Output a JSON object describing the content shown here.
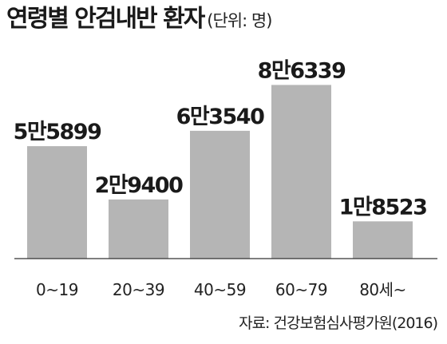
{
  "header": {
    "title": "연령별 안검내반 환자",
    "unit": "(단위: 명)"
  },
  "chart_data": {
    "type": "bar",
    "categories": [
      "0~19",
      "20~39",
      "40~59",
      "60~79",
      "80세~"
    ],
    "values": [
      55899,
      29400,
      63540,
      86339,
      18523
    ],
    "value_labels": [
      "5만5899",
      "2만9400",
      "6만3540",
      "8만6339",
      "1만8523"
    ],
    "title": "연령별 안검내반 환자",
    "unit": "(단위: 명)",
    "xlabel": "",
    "ylabel": "",
    "ylim": [
      0,
      100000
    ],
    "grid": false,
    "legend": "none",
    "bar_color": "#b5b5b5",
    "axis_color": "#333333"
  },
  "footer": {
    "source": "자료: 건강보험심사평가원(2016)"
  }
}
